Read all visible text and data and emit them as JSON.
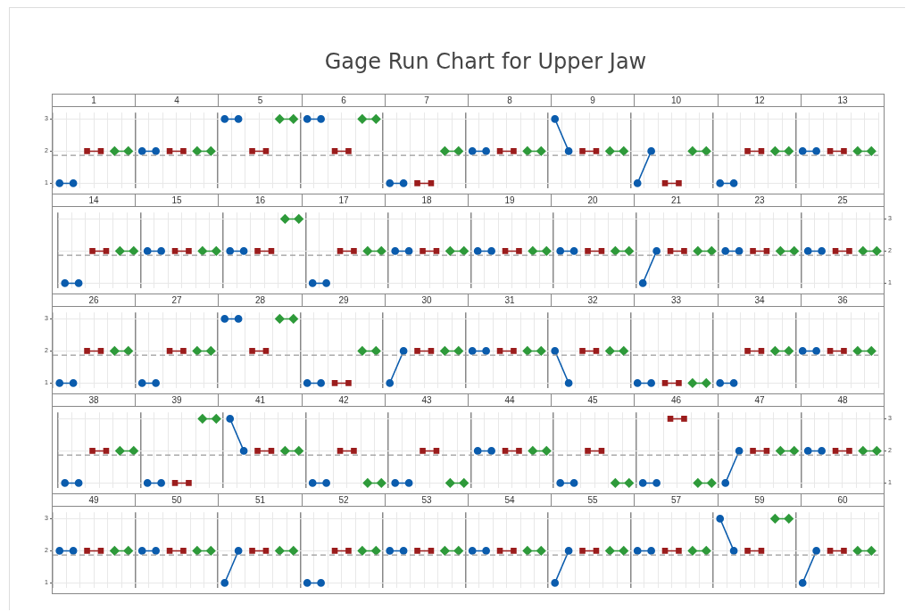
{
  "chart_data": [
    {
      "type": "other",
      "title": "Gage Run Chart for Upper Jaw"
    },
    {
      "type": "line",
      "annotations": [
        "1",
        "4",
        "5",
        "6",
        "7",
        "8",
        "9",
        "10",
        "12",
        "13"
      ],
      "categories": [
        null,
        null,
        null,
        null,
        null,
        null,
        null,
        null,
        null,
        null,
        null,
        null,
        null,
        null,
        null,
        null,
        null,
        null,
        null,
        null,
        null,
        null,
        null,
        null,
        null,
        null,
        null,
        null,
        null,
        null,
        null,
        null,
        null,
        null,
        null,
        null,
        null,
        null,
        null,
        null,
        null,
        null,
        null,
        null,
        null,
        null,
        null,
        null,
        null,
        null,
        null,
        null,
        null,
        null,
        null,
        null,
        null,
        null,
        null,
        null
      ],
      "ylim": [
        0.85,
        3.2
      ],
      "yticks": [
        1,
        2,
        3
      ],
      "grid": true,
      "tick_labels": "y",
      "ref_lines": [
        {
          "axis": "y",
          "value": 1.87,
          "line_style": "dashed",
          "color": "#999999"
        }
      ],
      "series": [
        {
          "color": "#0b5cad",
          "marker": "circle",
          "values": [
            1,
            1,
            null,
            null,
            null,
            null,
            2,
            2,
            null,
            null,
            null,
            null,
            3,
            3,
            null,
            null,
            null,
            null,
            3,
            3,
            null,
            null,
            null,
            null,
            1,
            1,
            null,
            null,
            null,
            null,
            2,
            2,
            null,
            null,
            null,
            null,
            3,
            2,
            null,
            null,
            null,
            null,
            1,
            2,
            null,
            null,
            null,
            null,
            1,
            1,
            null,
            null,
            null,
            null,
            2,
            2,
            null,
            null,
            null,
            null
          ]
        },
        {
          "color": "#9b1c1c",
          "marker": "square",
          "values": [
            null,
            null,
            2,
            2,
            null,
            null,
            null,
            null,
            2,
            2,
            null,
            null,
            null,
            null,
            2,
            2,
            null,
            null,
            null,
            null,
            2,
            2,
            null,
            null,
            null,
            null,
            1,
            1,
            null,
            null,
            null,
            null,
            2,
            2,
            null,
            null,
            null,
            null,
            2,
            2,
            null,
            null,
            null,
            null,
            1,
            1,
            null,
            null,
            null,
            null,
            2,
            2,
            null,
            null,
            null,
            null,
            2,
            2,
            null,
            null
          ]
        },
        {
          "color": "#2e9a3a",
          "marker": "diamond",
          "values": [
            null,
            null,
            null,
            null,
            2,
            2,
            null,
            null,
            null,
            null,
            2,
            2,
            null,
            null,
            null,
            null,
            3,
            3,
            null,
            null,
            null,
            null,
            3,
            3,
            null,
            null,
            null,
            null,
            2,
            2,
            null,
            null,
            null,
            null,
            2,
            2,
            null,
            null,
            null,
            null,
            2,
            2,
            null,
            null,
            null,
            null,
            2,
            2,
            null,
            null,
            null,
            null,
            2,
            2,
            null,
            null,
            null,
            null,
            2,
            2
          ]
        }
      ]
    },
    {
      "type": "line",
      "annotations": [
        "14",
        "15",
        "16",
        "17",
        "18",
        "19",
        "20",
        "21",
        "23",
        "25"
      ],
      "categories": [
        null,
        null,
        null,
        null,
        null,
        null,
        null,
        null,
        null,
        null,
        null,
        null,
        null,
        null,
        null,
        null,
        null,
        null,
        null,
        null,
        null,
        null,
        null,
        null,
        null,
        null,
        null,
        null,
        null,
        null,
        null,
        null,
        null,
        null,
        null,
        null,
        null,
        null,
        null,
        null,
        null,
        null,
        null,
        null,
        null,
        null,
        null,
        null,
        null,
        null,
        null,
        null,
        null,
        null,
        null,
        null,
        null,
        null,
        null,
        null
      ],
      "y2lim": [
        0.85,
        3.2
      ],
      "y2ticks": [
        1,
        2,
        3
      ],
      "grid": true,
      "tick_labels": "y",
      "ref_lines": [
        {
          "axis": "y2",
          "value": 1.87,
          "line_style": "dashed",
          "color": "#999999"
        }
      ],
      "series": [
        {
          "color": "#0b5cad",
          "marker": "circle",
          "axis": "y2",
          "values": [
            1,
            1,
            null,
            null,
            null,
            null,
            2,
            2,
            null,
            null,
            null,
            null,
            2,
            2,
            null,
            null,
            null,
            null,
            1,
            1,
            null,
            null,
            null,
            null,
            2,
            2,
            null,
            null,
            null,
            null,
            2,
            2,
            null,
            null,
            null,
            null,
            2,
            2,
            null,
            null,
            null,
            null,
            1,
            2,
            null,
            null,
            null,
            null,
            2,
            2,
            null,
            null,
            null,
            null,
            2,
            2,
            null,
            null,
            null,
            null
          ]
        },
        {
          "color": "#9b1c1c",
          "marker": "square",
          "axis": "y2",
          "values": [
            null,
            null,
            2,
            2,
            null,
            null,
            null,
            null,
            2,
            2,
            null,
            null,
            null,
            null,
            2,
            2,
            null,
            null,
            null,
            null,
            2,
            2,
            null,
            null,
            null,
            null,
            2,
            2,
            null,
            null,
            null,
            null,
            2,
            2,
            null,
            null,
            null,
            null,
            2,
            2,
            null,
            null,
            null,
            null,
            2,
            2,
            null,
            null,
            null,
            null,
            2,
            2,
            null,
            null,
            null,
            null,
            2,
            2,
            null,
            null
          ]
        },
        {
          "color": "#2e9a3a",
          "marker": "diamond",
          "axis": "y2",
          "values": [
            null,
            null,
            null,
            null,
            2,
            2,
            null,
            null,
            null,
            null,
            2,
            2,
            null,
            null,
            null,
            null,
            3,
            3,
            null,
            null,
            null,
            null,
            2,
            2,
            null,
            null,
            null,
            null,
            2,
            2,
            null,
            null,
            null,
            null,
            2,
            2,
            null,
            null,
            null,
            null,
            2,
            2,
            null,
            null,
            null,
            null,
            2,
            2,
            null,
            null,
            null,
            null,
            2,
            2,
            null,
            null,
            null,
            null,
            2,
            2
          ]
        }
      ]
    },
    {
      "type": "line",
      "annotations": [
        "26",
        "27",
        "28",
        "29",
        "30",
        "31",
        "32",
        "33",
        "34",
        "36"
      ],
      "categories": [
        null,
        null,
        null,
        null,
        null,
        null,
        null,
        null,
        null,
        null,
        null,
        null,
        null,
        null,
        null,
        null,
        null,
        null,
        null,
        null,
        null,
        null,
        null,
        null,
        null,
        null,
        null,
        null,
        null,
        null,
        null,
        null,
        null,
        null,
        null,
        null,
        null,
        null,
        null,
        null,
        null,
        null,
        null,
        null,
        null,
        null,
        null,
        null,
        null,
        null,
        null,
        null,
        null,
        null,
        null,
        null,
        null,
        null,
        null,
        null
      ],
      "ylim": [
        0.85,
        3.2
      ],
      "yticks": [
        1,
        2,
        3
      ],
      "grid": true,
      "tick_labels": "y",
      "ref_lines": [
        {
          "axis": "y",
          "value": 1.87,
          "line_style": "dashed",
          "color": "#999999"
        }
      ],
      "series": [
        {
          "color": "#0b5cad",
          "marker": "circle",
          "values": [
            1,
            1,
            null,
            null,
            null,
            null,
            1,
            1,
            null,
            null,
            null,
            null,
            3,
            3,
            null,
            null,
            null,
            null,
            1,
            1,
            null,
            null,
            null,
            null,
            1,
            2,
            null,
            null,
            null,
            null,
            2,
            2,
            null,
            null,
            null,
            null,
            2,
            1,
            null,
            null,
            null,
            null,
            1,
            1,
            null,
            null,
            null,
            null,
            1,
            1,
            null,
            null,
            null,
            null,
            2,
            2,
            null,
            null,
            null,
            null
          ]
        },
        {
          "color": "#9b1c1c",
          "marker": "square",
          "values": [
            null,
            null,
            2,
            2,
            null,
            null,
            null,
            null,
            2,
            2,
            null,
            null,
            null,
            null,
            2,
            2,
            null,
            null,
            null,
            null,
            1,
            1,
            null,
            null,
            null,
            null,
            2,
            2,
            null,
            null,
            null,
            null,
            2,
            2,
            null,
            null,
            null,
            null,
            2,
            2,
            null,
            null,
            null,
            null,
            1,
            1,
            null,
            null,
            null,
            null,
            2,
            2,
            null,
            null,
            null,
            null,
            2,
            2,
            null,
            null
          ]
        },
        {
          "color": "#2e9a3a",
          "marker": "diamond",
          "values": [
            null,
            null,
            null,
            null,
            2,
            2,
            null,
            null,
            null,
            null,
            2,
            2,
            null,
            null,
            null,
            null,
            3,
            3,
            null,
            null,
            null,
            null,
            2,
            2,
            null,
            null,
            null,
            null,
            2,
            2,
            null,
            null,
            null,
            null,
            2,
            2,
            null,
            null,
            null,
            null,
            2,
            2,
            null,
            null,
            null,
            null,
            1,
            1,
            null,
            null,
            null,
            null,
            2,
            2,
            null,
            null,
            null,
            null,
            2,
            2
          ]
        }
      ]
    },
    {
      "type": "line",
      "annotations": [
        "38",
        "39",
        "41",
        "42",
        "43",
        "44",
        "45",
        "46",
        "47",
        "48"
      ],
      "categories": [
        null,
        null,
        null,
        null,
        null,
        null,
        null,
        null,
        null,
        null,
        null,
        null,
        null,
        null,
        null,
        null,
        null,
        null,
        null,
        null,
        null,
        null,
        null,
        null,
        null,
        null,
        null,
        null,
        null,
        null,
        null,
        null,
        null,
        null,
        null,
        null,
        null,
        null,
        null,
        null,
        null,
        null,
        null,
        null,
        null,
        null,
        null,
        null,
        null,
        null,
        null,
        null,
        null,
        null,
        null,
        null,
        null,
        null,
        null,
        null
      ],
      "y2lim": [
        0.85,
        3.2
      ],
      "y2ticks": [
        1,
        2,
        3
      ],
      "grid": true,
      "tick_labels": "y",
      "ref_lines": [
        {
          "axis": "y2",
          "value": 1.87,
          "line_style": "dashed",
          "color": "#999999"
        }
      ],
      "series": [
        {
          "color": "#0b5cad",
          "marker": "circle",
          "axis": "y2",
          "values": [
            1,
            1,
            null,
            null,
            null,
            null,
            1,
            1,
            null,
            null,
            null,
            null,
            3,
            2,
            null,
            null,
            null,
            null,
            1,
            1,
            null,
            null,
            null,
            null,
            1,
            1,
            null,
            null,
            null,
            null,
            2,
            2,
            null,
            null,
            null,
            null,
            1,
            1,
            null,
            null,
            null,
            null,
            1,
            1,
            null,
            null,
            null,
            null,
            1,
            2,
            null,
            null,
            null,
            null,
            2,
            2,
            null,
            null,
            null,
            null
          ]
        },
        {
          "color": "#9b1c1c",
          "marker": "square",
          "axis": "y2",
          "values": [
            null,
            null,
            2,
            2,
            null,
            null,
            null,
            null,
            1,
            1,
            null,
            null,
            null,
            null,
            2,
            2,
            null,
            null,
            null,
            null,
            2,
            2,
            null,
            null,
            null,
            null,
            2,
            2,
            null,
            null,
            null,
            null,
            2,
            2,
            null,
            null,
            null,
            null,
            2,
            2,
            null,
            null,
            null,
            null,
            3,
            3,
            null,
            null,
            null,
            null,
            2,
            2,
            null,
            null,
            null,
            null,
            2,
            2,
            null,
            null
          ]
        },
        {
          "color": "#2e9a3a",
          "marker": "diamond",
          "axis": "y2",
          "values": [
            null,
            null,
            null,
            null,
            2,
            2,
            null,
            null,
            null,
            null,
            3,
            3,
            null,
            null,
            null,
            null,
            2,
            2,
            null,
            null,
            null,
            null,
            1,
            1,
            null,
            null,
            null,
            null,
            1,
            1,
            null,
            null,
            null,
            null,
            2,
            2,
            null,
            null,
            null,
            null,
            1,
            1,
            null,
            null,
            null,
            null,
            1,
            1,
            null,
            null,
            null,
            null,
            2,
            2,
            null,
            null,
            null,
            null,
            2,
            2
          ]
        }
      ]
    },
    {
      "type": "line",
      "annotations": [
        "49",
        "50",
        "51",
        "52",
        "53",
        "54",
        "55",
        "57",
        "59",
        "60"
      ],
      "categories": [
        null,
        null,
        null,
        null,
        null,
        null,
        null,
        null,
        null,
        null,
        null,
        null,
        null,
        null,
        null,
        null,
        null,
        null,
        null,
        null,
        null,
        null,
        null,
        null,
        null,
        null,
        null,
        null,
        null,
        null,
        null,
        null,
        null,
        null,
        null,
        null,
        null,
        null,
        null,
        null,
        null,
        null,
        null,
        null,
        null,
        null,
        null,
        null,
        null,
        null,
        null,
        null,
        null,
        null,
        null,
        null,
        null,
        null,
        null,
        null
      ],
      "ylim": [
        0.85,
        3.2
      ],
      "yticks": [
        1,
        2,
        3
      ],
      "grid": true,
      "tick_labels": "y",
      "ref_lines": [
        {
          "axis": "y",
          "value": 1.87,
          "line_style": "dashed",
          "color": "#999999"
        }
      ],
      "series": [
        {
          "color": "#0b5cad",
          "marker": "circle",
          "values": [
            2,
            2,
            null,
            null,
            null,
            null,
            2,
            2,
            null,
            null,
            null,
            null,
            1,
            2,
            null,
            null,
            null,
            null,
            1,
            1,
            null,
            null,
            null,
            null,
            2,
            2,
            null,
            null,
            null,
            null,
            2,
            2,
            null,
            null,
            null,
            null,
            1,
            2,
            null,
            null,
            null,
            null,
            2,
            2,
            null,
            null,
            null,
            null,
            3,
            2,
            null,
            null,
            null,
            null,
            1,
            2,
            null,
            null,
            null,
            null
          ]
        },
        {
          "color": "#9b1c1c",
          "marker": "square",
          "values": [
            null,
            null,
            2,
            2,
            null,
            null,
            null,
            null,
            2,
            2,
            null,
            null,
            null,
            null,
            2,
            2,
            null,
            null,
            null,
            null,
            2,
            2,
            null,
            null,
            null,
            null,
            2,
            2,
            null,
            null,
            null,
            null,
            2,
            2,
            null,
            null,
            null,
            null,
            2,
            2,
            null,
            null,
            null,
            null,
            2,
            2,
            null,
            null,
            null,
            null,
            2,
            2,
            null,
            null,
            null,
            null,
            2,
            2,
            null,
            null
          ]
        },
        {
          "color": "#2e9a3a",
          "marker": "diamond",
          "values": [
            null,
            null,
            null,
            null,
            2,
            2,
            null,
            null,
            null,
            null,
            2,
            2,
            null,
            null,
            null,
            null,
            2,
            2,
            null,
            null,
            null,
            null,
            2,
            2,
            null,
            null,
            null,
            null,
            2,
            2,
            null,
            null,
            null,
            null,
            2,
            2,
            null,
            null,
            null,
            null,
            2,
            2,
            null,
            null,
            null,
            null,
            2,
            2,
            null,
            null,
            null,
            null,
            3,
            3,
            null,
            null,
            null,
            null,
            2,
            2
          ]
        }
      ]
    }
  ]
}
